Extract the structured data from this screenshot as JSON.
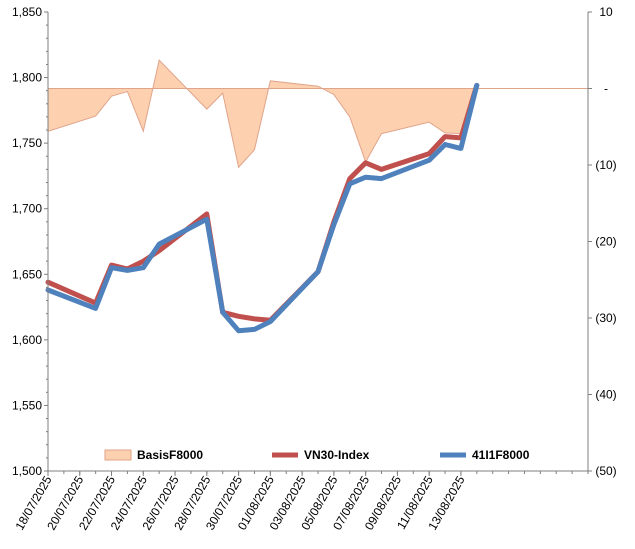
{
  "chart_data": {
    "type": "line",
    "x": [
      "18/07/2025",
      "21/07/2025",
      "22/07/2025",
      "23/07/2025",
      "24/07/2025",
      "25/07/2025",
      "28/07/2025",
      "29/07/2025",
      "30/07/2025",
      "31/07/2025",
      "01/08/2025",
      "04/08/2025",
      "05/08/2025",
      "06/08/2025",
      "07/08/2025",
      "08/08/2025",
      "11/08/2025",
      "12/08/2025",
      "13/08/2025",
      "14/08/2025"
    ],
    "x_tick_labels": [
      "18/07/2025",
      "20/07/2025",
      "22/07/2025",
      "24/07/2025",
      "26/07/2025",
      "28/07/2025",
      "30/07/2025",
      "01/08/2025",
      "03/08/2025",
      "05/08/2025",
      "07/08/2025",
      "09/08/2025",
      "11/08/2025",
      "13/08/2025"
    ],
    "x_ticks": [
      "18/07/2025",
      "20/07/2025",
      "22/07/2025",
      "24/07/2025",
      "26/07/2025",
      "28/07/2025",
      "30/07/2025",
      "01/08/2025",
      "03/08/2025",
      "05/08/2025",
      "07/08/2025",
      "09/08/2025",
      "11/08/2025",
      "13/08/2025"
    ],
    "y_left": {
      "min": 1500,
      "max": 1850,
      "step": 50,
      "tick_labels": [
        "1,500",
        "1,550",
        "1,600",
        "1,650",
        "1,700",
        "1,750",
        "1,800",
        "1,850"
      ]
    },
    "y_right": {
      "min": -50,
      "max": 10,
      "step": 10,
      "tick_labels": [
        "(50)",
        "(40)",
        "(30)",
        "(20)",
        "(10)",
        "-",
        "10"
      ]
    },
    "series": [
      {
        "name": "BasisF8000",
        "kind": "area",
        "axis": "right",
        "color": "#fdd0b0",
        "stroke": "#e0a48a",
        "points": [
          [
            "18/07/2025",
            -5.6
          ],
          [
            "21/07/2025",
            -3.6
          ],
          [
            "22/07/2025",
            -1.0
          ],
          [
            "23/07/2025",
            -0.4
          ],
          [
            "24/07/2025",
            -5.6
          ],
          [
            "25/07/2025",
            3.7
          ],
          [
            "28/07/2025",
            -2.7
          ],
          [
            "29/07/2025",
            -0.6
          ],
          [
            "30/07/2025",
            -10.3
          ],
          [
            "31/07/2025",
            -8.0
          ],
          [
            "01/08/2025",
            1.0
          ],
          [
            "04/08/2025",
            0.3
          ],
          [
            "05/08/2025",
            -0.8
          ],
          [
            "06/08/2025",
            -3.7
          ],
          [
            "07/08/2025",
            -9.6
          ],
          [
            "08/08/2025",
            -5.9
          ],
          [
            "11/08/2025",
            -4.4
          ],
          [
            "12/08/2025",
            -5.8
          ],
          [
            "13/08/2025",
            -5.9
          ],
          [
            "14/08/2025",
            0.2
          ]
        ]
      },
      {
        "name": "VN30-Index",
        "kind": "line",
        "axis": "left",
        "color": "#c0504d",
        "points": [
          [
            "18/07/2025",
            1644
          ],
          [
            "21/07/2025",
            1628
          ],
          [
            "22/07/2025",
            1657
          ],
          [
            "23/07/2025",
            1654
          ],
          [
            "24/07/2025",
            1660
          ],
          [
            "25/07/2025",
            1668
          ],
          [
            "28/07/2025",
            1696
          ],
          [
            "29/07/2025",
            1621
          ],
          [
            "30/07/2025",
            1618
          ],
          [
            "31/07/2025",
            1616
          ],
          [
            "01/08/2025",
            1615
          ],
          [
            "04/08/2025",
            1652
          ],
          [
            "05/08/2025",
            1690
          ],
          [
            "06/08/2025",
            1723
          ],
          [
            "07/08/2025",
            1735
          ],
          [
            "08/08/2025",
            1730
          ],
          [
            "11/08/2025",
            1742
          ],
          [
            "12/08/2025",
            1755
          ],
          [
            "13/08/2025",
            1754
          ],
          [
            "14/08/2025",
            1794
          ]
        ]
      },
      {
        "name": "41I1F8000",
        "kind": "line",
        "axis": "left",
        "color": "#4f81bd",
        "points": [
          [
            "18/07/2025",
            1638
          ],
          [
            "21/07/2025",
            1624
          ],
          [
            "22/07/2025",
            1655
          ],
          [
            "23/07/2025",
            1653
          ],
          [
            "24/07/2025",
            1655
          ],
          [
            "25/07/2025",
            1673
          ],
          [
            "28/07/2025",
            1692
          ],
          [
            "29/07/2025",
            1621
          ],
          [
            "30/07/2025",
            1607
          ],
          [
            "31/07/2025",
            1608
          ],
          [
            "01/08/2025",
            1614
          ],
          [
            "04/08/2025",
            1652
          ],
          [
            "05/08/2025",
            1688
          ],
          [
            "06/08/2025",
            1719
          ],
          [
            "07/08/2025",
            1724
          ],
          [
            "08/08/2025",
            1723
          ],
          [
            "11/08/2025",
            1737
          ],
          [
            "12/08/2025",
            1749
          ],
          [
            "13/08/2025",
            1746
          ],
          [
            "14/08/2025",
            1794
          ]
        ]
      }
    ],
    "legend": {
      "placement": "bottom-inside",
      "entries": [
        "BasisF8000",
        "VN30-Index",
        "41I1F8000"
      ]
    },
    "grid": false
  }
}
